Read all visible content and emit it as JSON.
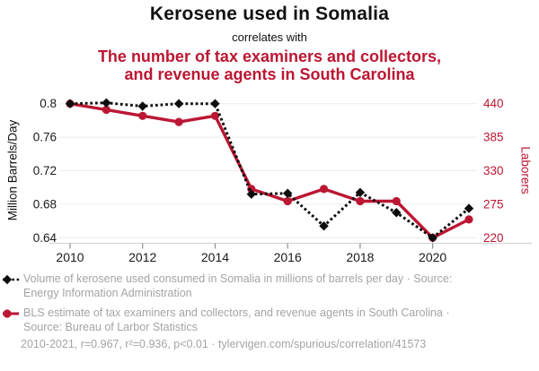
{
  "page": {
    "background": "#ffffff"
  },
  "header": {
    "title_top": "Kerosene used in Somalia",
    "connector": "correlates with",
    "title_bottom_lines": [
      "The number of tax examiners and collectors,",
      "and revenue agents in South Carolina"
    ]
  },
  "colors": {
    "red": "#bb1733",
    "black_series": "#0d0d0d",
    "grid": "#ececec",
    "axis_line": "#d4d4d4",
    "tick_mark": "#8f8f8f",
    "tick_label": "#1a1a1a",
    "legend_gray": "#a4a4a4"
  },
  "chart_data": {
    "type": "line",
    "x": [
      2010,
      2011,
      2012,
      2013,
      2014,
      2015,
      2016,
      2017,
      2018,
      2019,
      2020,
      2021
    ],
    "series": [
      {
        "name": "Volume of kerosene used consumed in Somalia",
        "axis": "left",
        "unit": "Million Barrels/Day",
        "line_style": "dotted",
        "marker": "diamond",
        "color": "#0d0d0d",
        "values": [
          0.8,
          0.801,
          0.797,
          0.8,
          0.8,
          0.692,
          0.693,
          0.654,
          0.694,
          0.67,
          0.64,
          0.675
        ]
      },
      {
        "name": "BLS estimate of tax examiners and collectors, and revenue agents in South Carolina",
        "axis": "right",
        "unit": "Laborers",
        "line_style": "solid",
        "marker": "circle",
        "color": "#bb1733",
        "values": [
          440,
          430,
          420,
          410,
          420,
          300,
          280,
          300,
          280,
          280,
          220,
          250
        ]
      }
    ],
    "left_axis": {
      "label": "Million Barrels/Day",
      "ticks": [
        "0.8",
        "0.76",
        "0.72",
        "0.68",
        "0.64"
      ],
      "range": [
        0.64,
        0.8
      ]
    },
    "right_axis": {
      "label": "Laborers",
      "ticks": [
        "440",
        "385",
        "330",
        "275",
        "220"
      ],
      "range": [
        220,
        440
      ]
    },
    "x_axis": {
      "ticks": [
        "2010",
        "2012",
        "2014",
        "2016",
        "2018",
        "2020"
      ],
      "range": [
        2010,
        2021
      ]
    },
    "grid": "horizontal-only",
    "legend_position": "bottom"
  },
  "legend": {
    "items": [
      {
        "series": "kerosene",
        "text": "Volume of kerosene used consumed in Somalia in millions of barrels per day · Source: Energy Information Administration"
      },
      {
        "series": "laborers",
        "text": "BLS estimate of tax examiners and collectors, and revenue agents in South Carolina · Source: Bureau of Larbor Statistics"
      }
    ]
  },
  "footer": {
    "text": "2010-2021, r=0.967, r²=0.936, p<0.01 · tylervigen.com/spurious/correlation/41573"
  }
}
